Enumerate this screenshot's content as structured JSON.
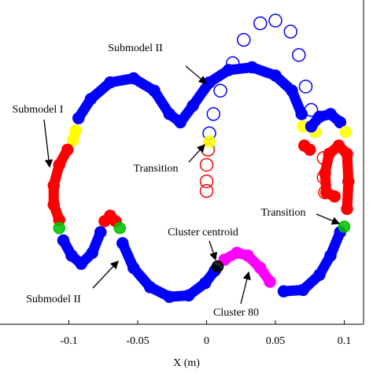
{
  "chart_data": {
    "type": "scatter",
    "xlabel": "X (m)",
    "xlim": [
      -0.15,
      0.114
    ],
    "xticks": [
      -0.1,
      -0.05,
      0,
      0.05,
      0.1
    ],
    "ylim": [
      -0.118,
      0.118
    ],
    "annotations": [
      "Submodel II",
      "Submodel I",
      "Transition",
      "Transition",
      "Cluster centroid",
      "Submodel II",
      "Cluster 80"
    ],
    "series": [
      {
        "color": "#0000ff",
        "dense": false,
        "x": [
          0.002,
          0.005,
          0.01,
          0.019,
          0.027,
          0.039,
          0.05,
          0.061,
          0.067,
          0.072,
          0.076
        ],
        "values": [
          0.021,
          0.035,
          0.052,
          0.072,
          0.089,
          0.101,
          0.103,
          0.095,
          0.078,
          0.055,
          0.038
        ]
      },
      {
        "color": "#ff0000",
        "dense": false,
        "x": [
          0.001,
          0.0,
          0.0,
          0.0
        ],
        "values": [
          0.009,
          -0.002,
          -0.014,
          -0.021
        ]
      },
      {
        "color": "#ff0000",
        "dense": false,
        "x": [
          0.085,
          0.085,
          0.086
        ],
        "values": [
          0.003,
          -0.011,
          -0.022
        ]
      },
      {
        "color": "#0000ff",
        "dense": true,
        "x": [
          -0.093,
          -0.084,
          -0.07,
          -0.053,
          -0.038,
          -0.027,
          -0.019,
          -0.01,
          0.002,
          0.016,
          0.033,
          0.05,
          0.062,
          0.069
        ],
        "values": [
          0.032,
          0.046,
          0.058,
          0.061,
          0.052,
          0.035,
          0.029,
          0.041,
          0.058,
          0.067,
          0.069,
          0.063,
          0.052,
          0.035
        ]
      },
      {
        "color": "#ffff00",
        "dense": true,
        "x": [
          -0.095,
          -0.097
        ],
        "values": [
          0.023,
          0.016
        ]
      },
      {
        "color": "#ff0000",
        "dense": true,
        "x": [
          -0.101,
          -0.107,
          -0.111,
          -0.111,
          -0.107
        ],
        "values": [
          0.009,
          -0.002,
          -0.017,
          -0.031,
          -0.042
        ]
      },
      {
        "color": "#00c000",
        "dense": true,
        "x": [
          -0.107
        ],
        "values": [
          -0.048
        ]
      },
      {
        "color": "#0000ff",
        "dense": true,
        "x": [
          -0.104,
          -0.098,
          -0.091,
          -0.083,
          -0.077
        ],
        "values": [
          -0.057,
          -0.068,
          -0.074,
          -0.066,
          -0.051
        ]
      },
      {
        "color": "#ff0000",
        "dense": true,
        "x": [
          -0.074,
          -0.07,
          -0.066
        ],
        "values": [
          -0.043,
          -0.039,
          -0.043
        ]
      },
      {
        "color": "#00c000",
        "dense": true,
        "x": [
          -0.063
        ],
        "values": [
          -0.048
        ]
      },
      {
        "color": "#0000ff",
        "dense": true,
        "x": [
          -0.061,
          -0.053,
          -0.041,
          -0.027,
          -0.013,
          -0.001,
          0.006
        ],
        "values": [
          -0.059,
          -0.077,
          -0.091,
          -0.098,
          -0.097,
          -0.088,
          -0.079
        ]
      },
      {
        "color": "#ff00ff",
        "dense": true,
        "x": [
          0.013,
          0.022,
          0.03,
          0.039,
          0.046
        ],
        "values": [
          -0.071,
          -0.066,
          -0.068,
          -0.077,
          -0.087
        ]
      },
      {
        "color": "#0000ff",
        "dense": true,
        "x": [
          0.056,
          0.07,
          0.082,
          0.09,
          0.097
        ],
        "values": [
          -0.094,
          -0.093,
          -0.082,
          -0.068,
          -0.051
        ]
      },
      {
        "color": "#00c000",
        "dense": true,
        "x": [
          0.1
        ],
        "values": [
          -0.047
        ]
      },
      {
        "color": "#ff0000",
        "dense": true,
        "x": [
          0.102,
          0.103,
          0.102,
          0.096,
          0.089,
          0.086,
          0.087,
          0.093
        ],
        "values": [
          -0.034,
          -0.014,
          0.006,
          0.012,
          0.006,
          -0.008,
          -0.022,
          -0.025
        ]
      },
      {
        "color": "#ffff00",
        "dense": true,
        "x": [
          0.07
        ],
        "values": [
          0.026
        ]
      },
      {
        "color": "#ff0000",
        "dense": true,
        "x": [
          0.071,
          0.075
        ],
        "values": [
          0.012,
          0.009
        ]
      },
      {
        "color": "#ffff00",
        "dense": true,
        "x": [
          0.079
        ],
        "values": [
          0.022
        ]
      },
      {
        "color": "#0000ff",
        "dense": true,
        "x": [
          0.076,
          0.082,
          0.09,
          0.097
        ],
        "values": [
          0.026,
          0.033,
          0.035,
          0.029
        ]
      },
      {
        "color": "#ffff00",
        "dense": true,
        "x": [
          0.101
        ],
        "values": [
          0.022
        ]
      },
      {
        "color": "#ffff00",
        "dense": true,
        "x": [
          0.002
        ],
        "values": [
          0.015
        ]
      },
      {
        "color": "#000000",
        "dense": true,
        "x": [
          0.008
        ],
        "values": [
          -0.076
        ]
      }
    ]
  }
}
